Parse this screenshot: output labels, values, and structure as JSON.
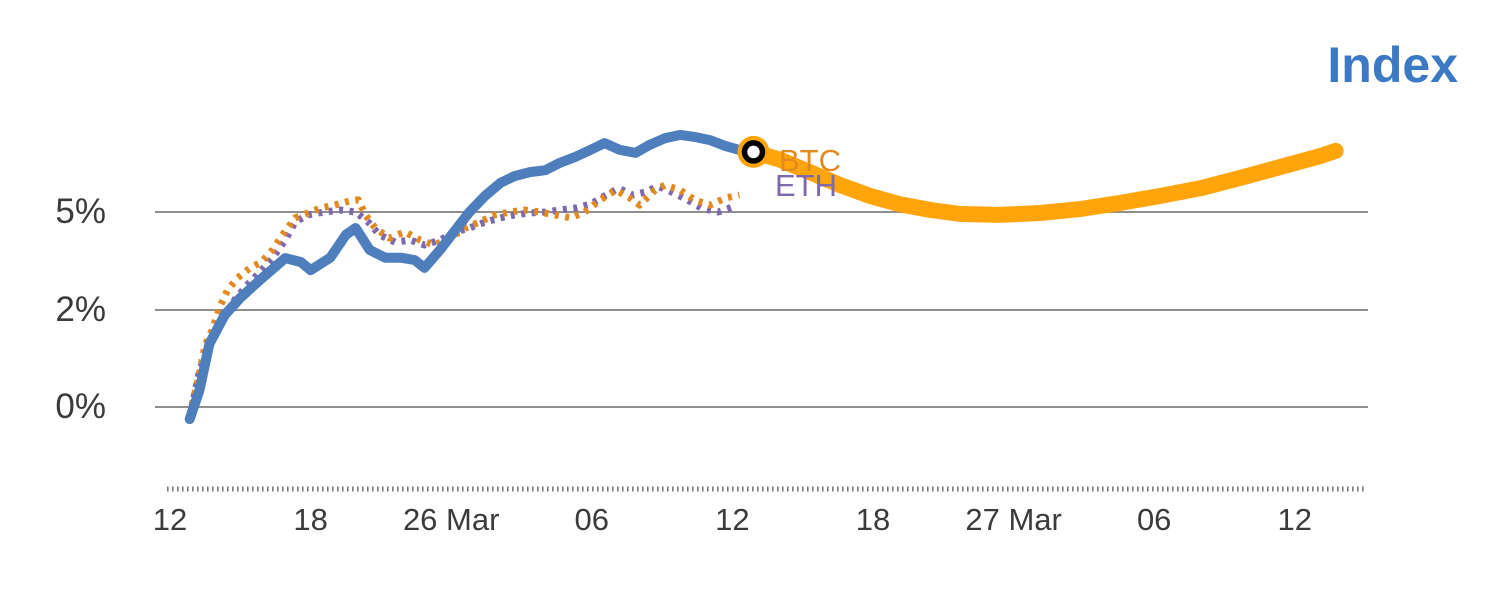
{
  "colors": {
    "title_blue": "#3b79c4",
    "index_blue": "#4f7ebd",
    "btc_orange": "#e2891f",
    "eth_purple": "#7e68ae",
    "forecast_orange": "#ffa40a",
    "grid": "#8f8f8f",
    "axis": "#7a7a7a",
    "tick_text": "#3b3b3b"
  },
  "chart_data": {
    "type": "line",
    "title": "Index",
    "xlabel": "",
    "ylabel": "",
    "ylim": [
      -1,
      8
    ],
    "grid": "horizontal",
    "legend_position": "inline-annotations",
    "y_ticks": [
      {
        "label": "5%",
        "value": 5
      },
      {
        "label": "2%",
        "value": 2
      },
      {
        "label": "0%",
        "value": 0
      }
    ],
    "x_ticks": [
      {
        "label": "12",
        "u": 0
      },
      {
        "label": "18",
        "u": 1
      },
      {
        "label": "26 Mar",
        "u": 2
      },
      {
        "label": "06",
        "u": 3
      },
      {
        "label": "12",
        "u": 4
      },
      {
        "label": "18",
        "u": 5
      },
      {
        "label": "27 Mar",
        "u": 6
      },
      {
        "label": "06",
        "u": 7
      },
      {
        "label": "12",
        "u": 8
      }
    ],
    "annotations": [
      {
        "text": "BTC",
        "series": "BTC"
      },
      {
        "text": "ETH",
        "series": "ETH"
      }
    ],
    "marker": {
      "u": 4.15,
      "value": 6.84
    },
    "series": [
      {
        "name": "ETH",
        "key": "eth-line",
        "color_key": "eth_purple",
        "width": 7,
        "dash": "4 6.5",
        "points": [
          [
            0.14,
            -0.23
          ],
          [
            0.21,
            0.76
          ],
          [
            0.27,
            1.18
          ],
          [
            0.32,
            1.49
          ],
          [
            0.39,
            1.9
          ],
          [
            0.46,
            2.31
          ],
          [
            0.55,
            2.77
          ],
          [
            0.64,
            3.16
          ],
          [
            0.73,
            3.59
          ],
          [
            0.82,
            4.14
          ],
          [
            0.89,
            4.69
          ],
          [
            0.98,
            4.91
          ],
          [
            1.1,
            5.0
          ],
          [
            1.21,
            5.06
          ],
          [
            1.32,
            5.0
          ],
          [
            1.41,
            4.69
          ],
          [
            1.49,
            4.3
          ],
          [
            1.6,
            4.08
          ],
          [
            1.71,
            4.14
          ],
          [
            1.81,
            3.99
          ],
          [
            1.92,
            4.14
          ],
          [
            2.03,
            4.39
          ],
          [
            2.13,
            4.51
          ],
          [
            2.24,
            4.69
          ],
          [
            2.35,
            4.82
          ],
          [
            2.45,
            4.91
          ],
          [
            2.56,
            4.97
          ],
          [
            2.67,
            5.0
          ],
          [
            2.77,
            5.06
          ],
          [
            2.88,
            5.12
          ],
          [
            2.99,
            5.24
          ],
          [
            3.09,
            5.49
          ],
          [
            3.19,
            5.73
          ],
          [
            3.29,
            5.52
          ],
          [
            3.38,
            5.61
          ],
          [
            3.47,
            5.79
          ],
          [
            3.57,
            5.61
          ],
          [
            3.68,
            5.37
          ],
          [
            3.78,
            5.12
          ],
          [
            3.9,
            5.0
          ],
          [
            4.02,
            5.18
          ]
        ]
      },
      {
        "name": "BTC",
        "key": "btc-line",
        "color_key": "btc_orange",
        "width": 7,
        "dash": "4 6.5",
        "points": [
          [
            0.14,
            -0.16
          ],
          [
            0.2,
            0.56
          ],
          [
            0.25,
            1.28
          ],
          [
            0.3,
            1.59
          ],
          [
            0.36,
            2.15
          ],
          [
            0.41,
            2.61
          ],
          [
            0.48,
            2.98
          ],
          [
            0.57,
            3.29
          ],
          [
            0.65,
            3.47
          ],
          [
            0.73,
            3.84
          ],
          [
            0.8,
            4.3
          ],
          [
            0.89,
            4.82
          ],
          [
            1.0,
            5.0
          ],
          [
            1.07,
            5.12
          ],
          [
            1.17,
            5.21
          ],
          [
            1.28,
            5.34
          ],
          [
            1.34,
            5.37
          ],
          [
            1.39,
            4.91
          ],
          [
            1.46,
            4.51
          ],
          [
            1.56,
            4.2
          ],
          [
            1.67,
            4.39
          ],
          [
            1.78,
            4.14
          ],
          [
            1.88,
            3.99
          ],
          [
            1.99,
            4.2
          ],
          [
            2.1,
            4.51
          ],
          [
            2.2,
            4.69
          ],
          [
            2.31,
            4.91
          ],
          [
            2.42,
            5.0
          ],
          [
            2.52,
            5.06
          ],
          [
            2.63,
            5.0
          ],
          [
            2.74,
            4.91
          ],
          [
            2.85,
            4.82
          ],
          [
            2.95,
            5.0
          ],
          [
            3.06,
            5.37
          ],
          [
            3.17,
            5.67
          ],
          [
            3.27,
            5.43
          ],
          [
            3.34,
            5.21
          ],
          [
            3.45,
            5.67
          ],
          [
            3.52,
            5.82
          ],
          [
            3.63,
            5.67
          ],
          [
            3.73,
            5.37
          ],
          [
            3.84,
            5.21
          ],
          [
            3.95,
            5.43
          ],
          [
            4.05,
            5.52
          ]
        ]
      },
      {
        "name": "Index",
        "key": "index-line",
        "color_key": "index_blue",
        "width": 10,
        "dash": "",
        "points": [
          [
            0.14,
            -0.25
          ],
          [
            0.21,
            0.35
          ],
          [
            0.28,
            1.3
          ],
          [
            0.39,
            1.9
          ],
          [
            0.5,
            2.37
          ],
          [
            0.64,
            2.92
          ],
          [
            0.82,
            3.59
          ],
          [
            0.93,
            3.47
          ],
          [
            1.0,
            3.22
          ],
          [
            1.14,
            3.6
          ],
          [
            1.25,
            4.3
          ],
          [
            1.32,
            4.51
          ],
          [
            1.42,
            3.84
          ],
          [
            1.53,
            3.6
          ],
          [
            1.64,
            3.6
          ],
          [
            1.74,
            3.53
          ],
          [
            1.81,
            3.29
          ],
          [
            1.92,
            3.84
          ],
          [
            2.03,
            4.45
          ],
          [
            2.13,
            5.0
          ],
          [
            2.24,
            5.49
          ],
          [
            2.35,
            5.89
          ],
          [
            2.45,
            6.1
          ],
          [
            2.56,
            6.22
          ],
          [
            2.67,
            6.28
          ],
          [
            2.77,
            6.5
          ],
          [
            2.88,
            6.68
          ],
          [
            2.99,
            6.9
          ],
          [
            3.09,
            7.11
          ],
          [
            3.2,
            6.9
          ],
          [
            3.31,
            6.81
          ],
          [
            3.41,
            7.05
          ],
          [
            3.52,
            7.26
          ],
          [
            3.63,
            7.36
          ],
          [
            3.73,
            7.3
          ],
          [
            3.84,
            7.2
          ],
          [
            3.95,
            7.02
          ],
          [
            4.05,
            6.9
          ],
          [
            4.15,
            6.84
          ]
        ]
      },
      {
        "name": "Index forecast",
        "key": "forecast-line",
        "color_key": "forecast_orange",
        "width": 16,
        "dash": "",
        "points": [
          [
            4.15,
            6.84
          ],
          [
            4.34,
            6.6
          ],
          [
            4.55,
            6.22
          ],
          [
            4.77,
            5.82
          ],
          [
            4.98,
            5.49
          ],
          [
            5.19,
            5.24
          ],
          [
            5.41,
            5.06
          ],
          [
            5.62,
            4.94
          ],
          [
            5.9,
            4.91
          ],
          [
            6.19,
            4.97
          ],
          [
            6.47,
            5.09
          ],
          [
            6.76,
            5.28
          ],
          [
            7.04,
            5.49
          ],
          [
            7.33,
            5.73
          ],
          [
            7.61,
            6.04
          ],
          [
            7.9,
            6.38
          ],
          [
            8.18,
            6.71
          ],
          [
            8.29,
            6.87
          ]
        ]
      }
    ]
  }
}
